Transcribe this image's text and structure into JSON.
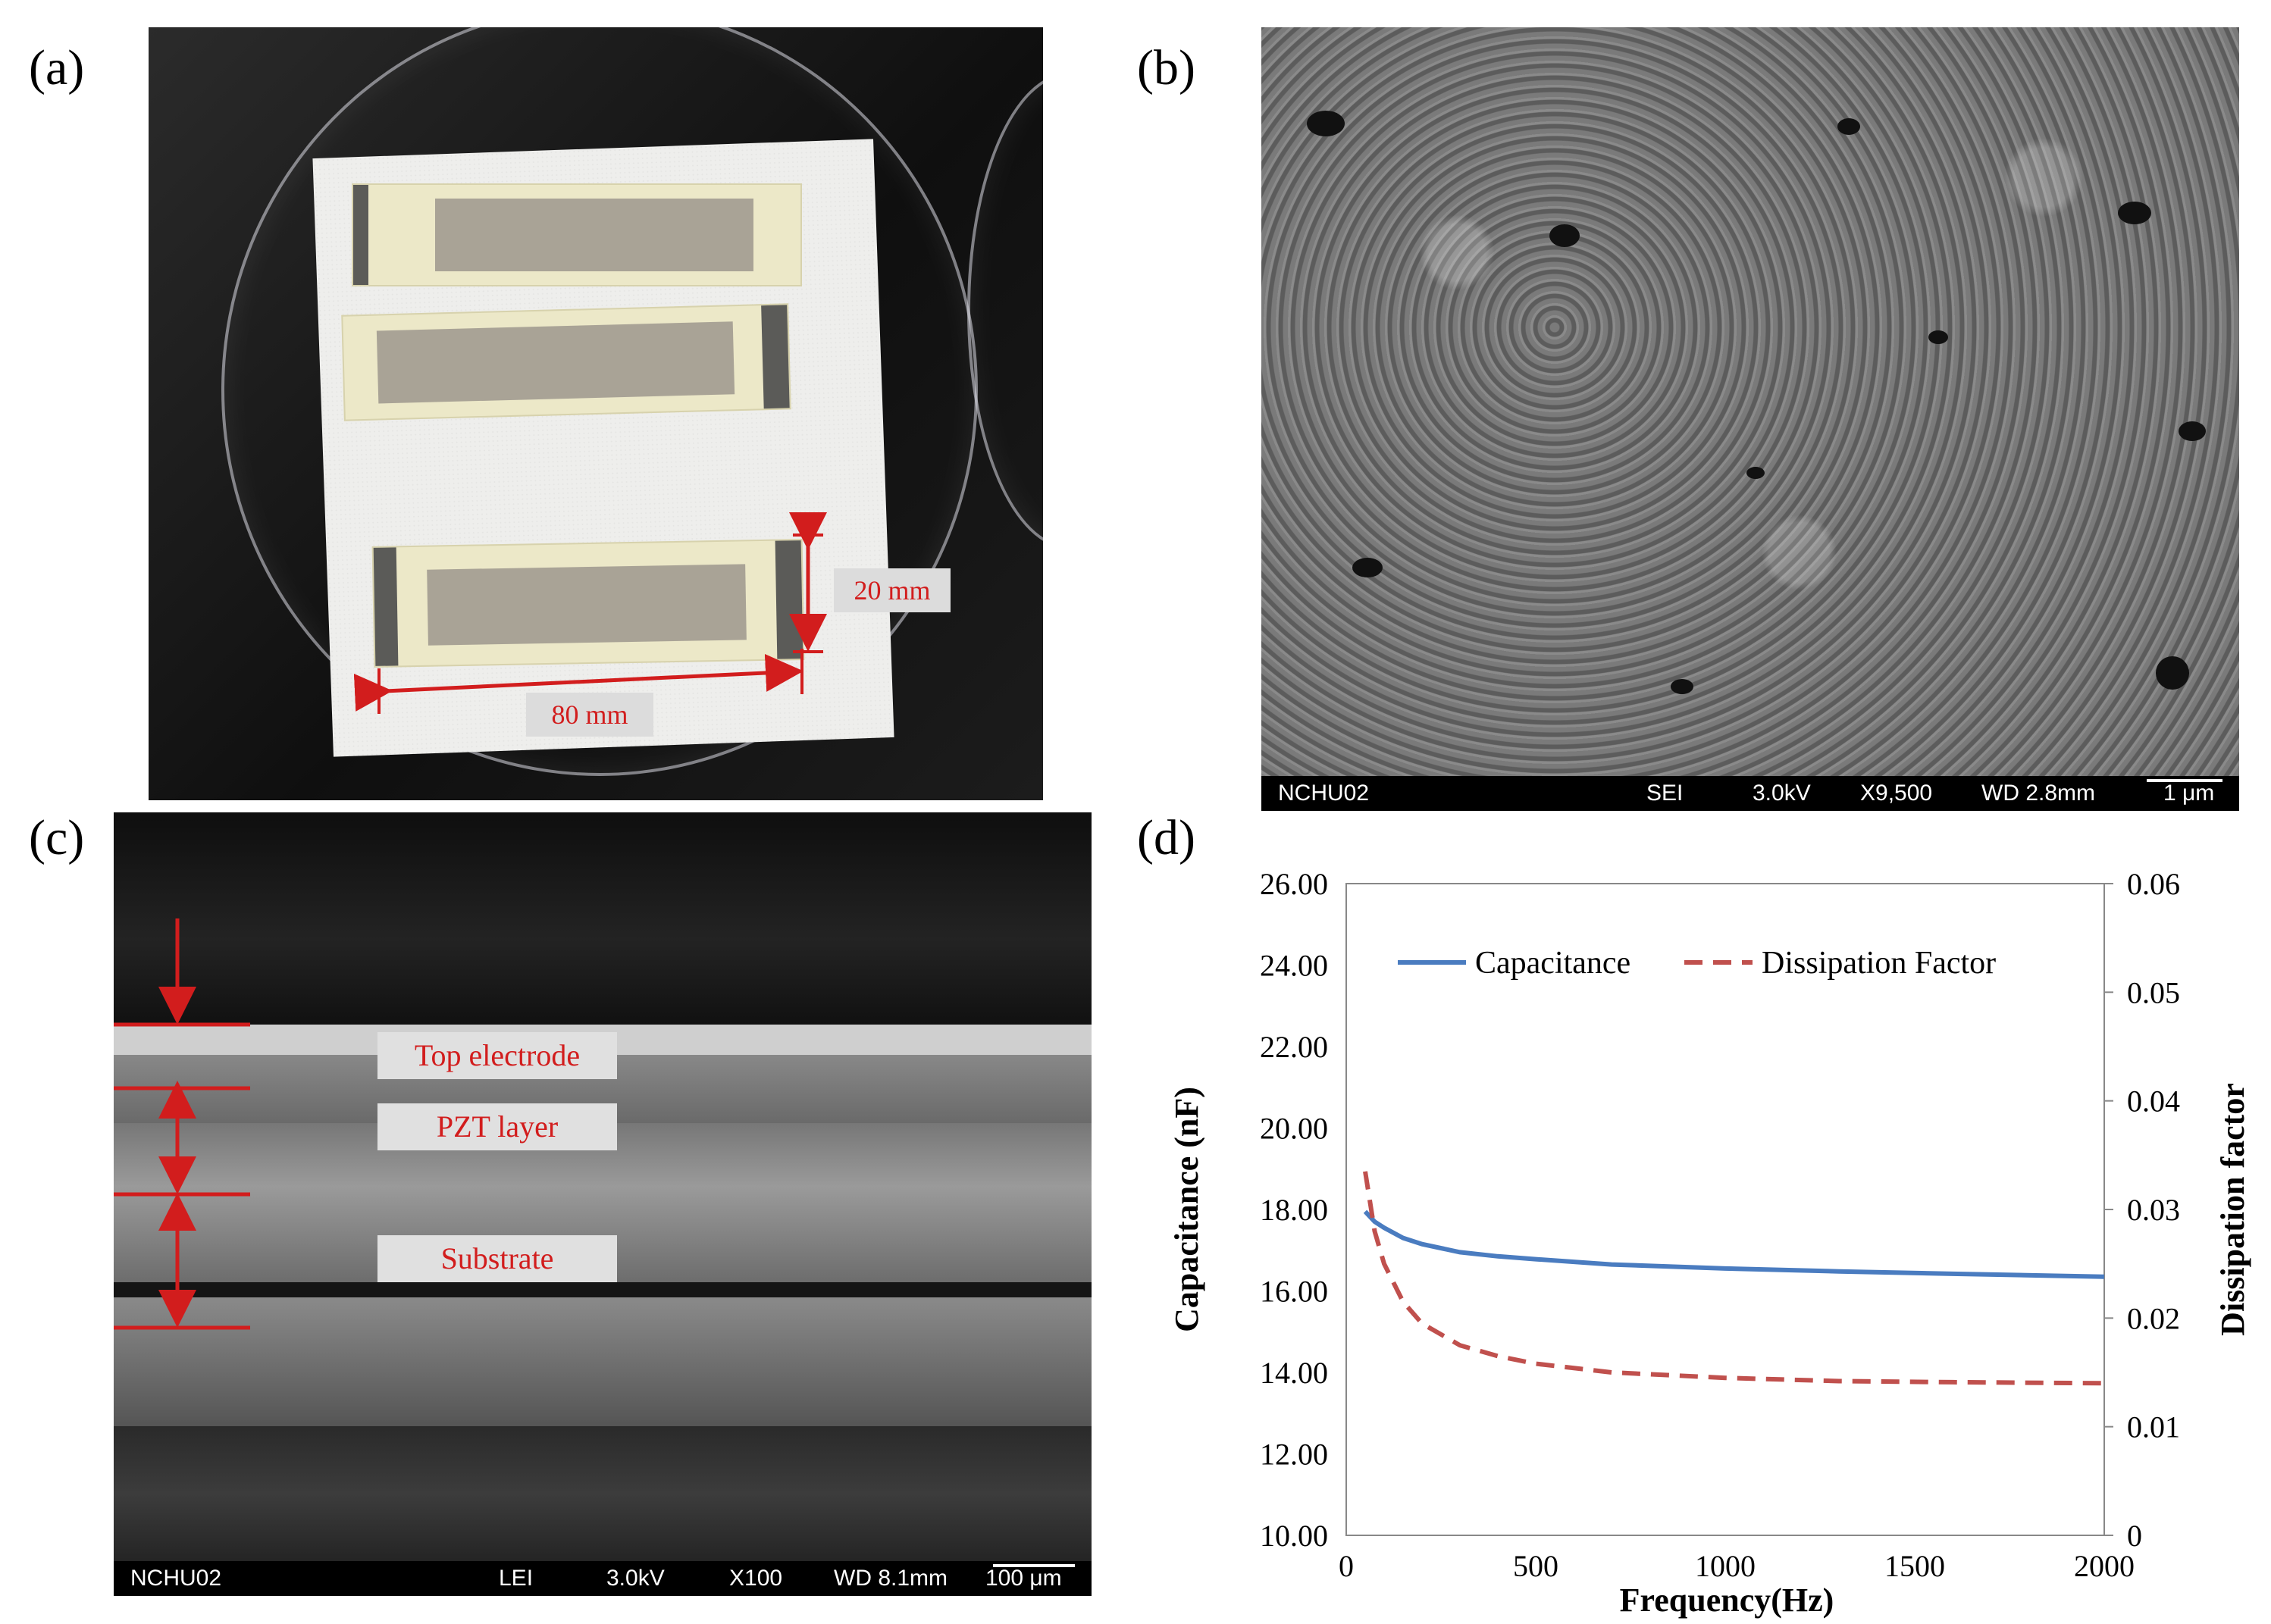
{
  "panels": {
    "a": "(a)",
    "b": "(b)",
    "c": "(c)",
    "d": "(d)"
  },
  "photo_a": {
    "width_label": "80 mm",
    "height_label": "20 mm"
  },
  "sem_b": {
    "bar": [
      "NCHU02",
      "SEI",
      "3.0kV",
      "X9,500",
      "WD 2.8mm",
      "1 μm"
    ]
  },
  "sem_c": {
    "layers": [
      "Top electrode",
      "PZT layer",
      "Substrate"
    ],
    "bar": [
      "NCHU02",
      "LEI",
      "3.0kV",
      "X100",
      "WD 8.1mm",
      "100 μm"
    ]
  },
  "colors": {
    "annotation_red": "#d21d1d",
    "capacitance": "#4a7cc0",
    "dissipation": "#c0504d"
  },
  "chart_data": {
    "type": "line",
    "xlabel": "Frequency(Hz)",
    "ylabel": "Capacitance  (nF)",
    "y2label": "Dissipation  factor",
    "xlim": [
      0,
      2000
    ],
    "ylim": [
      10,
      26
    ],
    "y2lim": [
      0,
      0.06
    ],
    "xticks": [
      "0",
      "500",
      "1000",
      "1500",
      "2000"
    ],
    "yticks": [
      "10.00",
      "12.00",
      "14.00",
      "16.00",
      "18.00",
      "20.00",
      "22.00",
      "24.00",
      "26.00"
    ],
    "y2ticks": [
      "0",
      "0.01",
      "0.02",
      "0.03",
      "0.04",
      "0.05",
      "0.06"
    ],
    "legend_position": "top",
    "grid": false,
    "series": [
      {
        "name": "Capacitance",
        "axis": "left",
        "style": "solid",
        "x": [
          50,
          75,
          100,
          150,
          200,
          300,
          400,
          500,
          700,
          1000,
          1300,
          1600,
          2000
        ],
        "y": [
          17.95,
          17.7,
          17.55,
          17.3,
          17.15,
          16.95,
          16.85,
          16.78,
          16.65,
          16.55,
          16.48,
          16.42,
          16.35
        ]
      },
      {
        "name": "Dissipation Factor",
        "axis": "right",
        "style": "dashed",
        "x": [
          50,
          75,
          100,
          150,
          200,
          300,
          400,
          500,
          700,
          1000,
          1300,
          1600,
          2000
        ],
        "y": [
          0.0335,
          0.028,
          0.025,
          0.0215,
          0.0195,
          0.0175,
          0.0165,
          0.0158,
          0.015,
          0.0145,
          0.0142,
          0.0141,
          0.014
        ]
      }
    ]
  }
}
